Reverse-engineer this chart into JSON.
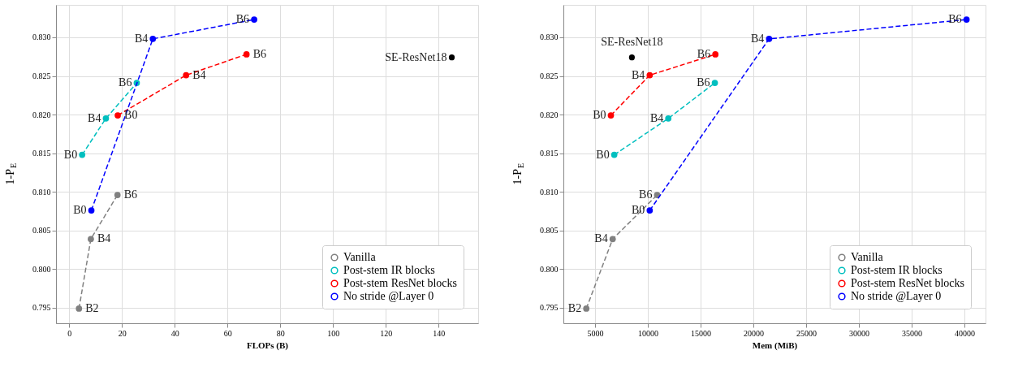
{
  "chart_data": [
    {
      "type": "line",
      "xlabel": "FLOPs (B)",
      "ylabel": "1-P$_{E}$",
      "xlim": [
        -5,
        155
      ],
      "xticks": [
        0,
        20,
        40,
        60,
        80,
        100,
        120,
        140
      ],
      "ylim": [
        0.793,
        0.8342
      ],
      "yticks": [
        0.795,
        {
          "value": 0.8,
          "label": "0.800"
        },
        0.805,
        {
          "value": 0.81,
          "label": "0.810"
        },
        0.815,
        {
          "value": 0.82,
          "label": "0.820"
        },
        0.825,
        {
          "value": 0.83,
          "label": "0.830"
        }
      ],
      "grid": true,
      "legend": "bottom right",
      "marker": "circle",
      "line_style": "dashed",
      "series": [
        {
          "name": "Vanilla",
          "color": "#808080",
          "x": [
            3.7,
            8.2,
            18.3
          ],
          "values": [
            0.7949,
            0.8039,
            0.8096
          ]
        },
        {
          "name": "Post-stem IR blocks",
          "color": "#00bfbf",
          "x": [
            4.9,
            13.9,
            25.6
          ],
          "values": [
            0.8148,
            0.8195,
            0.8241
          ]
        },
        {
          "name": "Post-stem ResNet blocks",
          "color": "#ff0000",
          "x": [
            18.4,
            44.3,
            67.2
          ],
          "values": [
            0.8199,
            0.8251,
            0.8278
          ]
        },
        {
          "name": "No stride @Layer 0",
          "color": "#0000ff",
          "x": [
            8.4,
            31.7,
            70.1
          ],
          "values": [
            0.8076,
            0.8298,
            0.8323
          ]
        },
        {
          "type": "scatter",
          "color": "#000000",
          "x": [
            145
          ],
          "values": [
            0.8274
          ]
        }
      ],
      "annotations": [
        {
          "text": "B2",
          "x": 3.7,
          "y": 0.7949
        },
        {
          "text": "B4",
          "x": 8.2,
          "y": 0.8039
        },
        {
          "text": "B6",
          "x": 18.3,
          "y": 0.8096
        },
        {
          "text": "B0",
          "x": 4.9,
          "y": 0.8148
        },
        {
          "text": "B4",
          "x": 13.9,
          "y": 0.8195
        },
        {
          "text": "B6",
          "x": 25.6,
          "y": 0.8241
        },
        {
          "text": "B0",
          "x": 18.4,
          "y": 0.8199
        },
        {
          "text": "B4",
          "x": 44.3,
          "y": 0.8251
        },
        {
          "text": "B6",
          "x": 67.2,
          "y": 0.8278
        },
        {
          "text": "B0",
          "x": 8.4,
          "y": 0.8076
        },
        {
          "text": "B4",
          "x": 31.7,
          "y": 0.8298
        },
        {
          "text": "B6",
          "x": 70.1,
          "y": 0.8323
        },
        {
          "text": "SE-ResNet18",
          "x": 145,
          "y": 0.8274
        }
      ]
    },
    {
      "type": "line",
      "xlabel": "Mem (MiB)",
      "ylabel": "1-P$_{E}$",
      "xlim": [
        2000,
        42000
      ],
      "xticks": [
        5000,
        10000,
        15000,
        20000,
        25000,
        30000,
        35000,
        40000
      ],
      "ylim": [
        0.793,
        0.8342
      ],
      "yticks": [
        0.795,
        {
          "value": 0.8,
          "label": "0.800"
        },
        0.805,
        {
          "value": 0.81,
          "label": "0.810"
        },
        0.815,
        {
          "value": 0.82,
          "label": "0.820"
        },
        0.825,
        {
          "value": 0.83,
          "label": "0.830"
        }
      ],
      "grid": true,
      "legend": "bottom right",
      "marker": "circle",
      "line_style": "dashed",
      "series": [
        {
          "name": "Vanilla",
          "color": "#808080",
          "x": [
            4170,
            6670,
            10880
          ],
          "values": [
            0.7949,
            0.8039,
            0.8096
          ]
        },
        {
          "name": "Post-stem IR blocks",
          "color": "#00bfbf",
          "x": [
            6820,
            11940,
            16350
          ],
          "values": [
            0.8148,
            0.8195,
            0.8241
          ]
        },
        {
          "name": "Post-stem ResNet blocks",
          "color": "#ff0000",
          "x": [
            6500,
            10180,
            16400
          ],
          "values": [
            0.8199,
            0.8251,
            0.8278
          ]
        },
        {
          "name": "No stride @Layer 0",
          "color": "#0000ff",
          "x": [
            10180,
            21490,
            40200
          ],
          "values": [
            0.8076,
            0.8298,
            0.8323
          ]
        },
        {
          "type": "scatter",
          "color": "#000000",
          "x": [
            8490
          ],
          "values": [
            0.8274
          ]
        }
      ],
      "annotations": [
        {
          "text": "B2",
          "x": 4170,
          "y": 0.7949
        },
        {
          "text": "B4",
          "x": 6670,
          "y": 0.8039
        },
        {
          "text": "B6",
          "x": 10880,
          "y": 0.8096
        },
        {
          "text": "B0",
          "x": 6820,
          "y": 0.8148
        },
        {
          "text": "B4",
          "x": 11940,
          "y": 0.8195
        },
        {
          "text": "B6",
          "x": 16350,
          "y": 0.8241
        },
        {
          "text": "B0",
          "x": 6500,
          "y": 0.8199
        },
        {
          "text": "B4",
          "x": 10180,
          "y": 0.8251
        },
        {
          "text": "B6",
          "x": 16400,
          "y": 0.8278
        },
        {
          "text": "B0",
          "x": 10180,
          "y": 0.8076
        },
        {
          "text": "B4",
          "x": 21490,
          "y": 0.8298
        },
        {
          "text": "B6",
          "x": 40200,
          "y": 0.8323
        },
        {
          "text": "SE-ResNet18",
          "x": 8490,
          "y": 0.8274
        }
      ]
    }
  ]
}
